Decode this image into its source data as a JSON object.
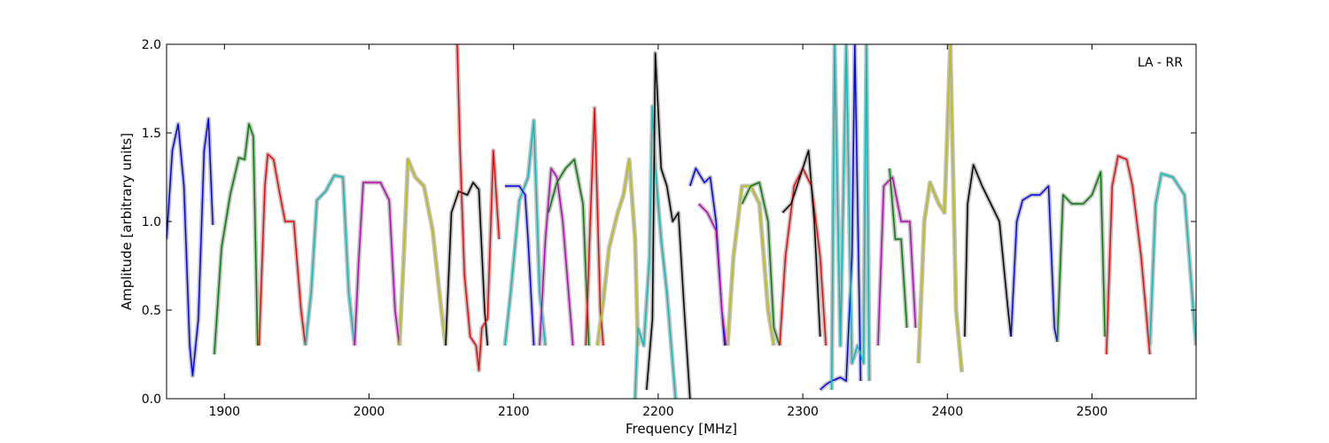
{
  "chart_data": {
    "type": "line",
    "title": "",
    "annotation": "LA - RR",
    "legend": "none",
    "xlabel": "Frequency [MHz]",
    "ylabel": "Amplitude [arbitrary units]",
    "xlim": [
      1860,
      2572
    ],
    "ylim": [
      0.0,
      2.0
    ],
    "xticks": [
      1900,
      2000,
      2100,
      2200,
      2300,
      2400,
      2500
    ],
    "xtick_labels": [
      "1900",
      "2000",
      "2100",
      "2200",
      "2300",
      "2400",
      "2500"
    ],
    "yticks": [
      0.0,
      0.5,
      1.0,
      1.5,
      2.0
    ],
    "ytick_labels": [
      "0.0",
      "0.5",
      "1.0",
      "1.5",
      "2.0"
    ],
    "grid": false,
    "background_color": "#c0c0c0",
    "series": [
      {
        "color": "#0000ff",
        "values": [
          [
            1860,
            0.9
          ],
          [
            1864,
            1.4
          ],
          [
            1868,
            1.55
          ],
          [
            1872,
            1.2
          ],
          [
            1876,
            0.3
          ],
          [
            1878,
            0.13
          ],
          [
            1882,
            0.45
          ],
          [
            1886,
            1.4
          ],
          [
            1889,
            1.58
          ],
          [
            1892,
            0.98
          ]
        ]
      },
      {
        "color": "#008000",
        "values": [
          [
            1893,
            0.25
          ],
          [
            1898,
            0.85
          ],
          [
            1904,
            1.15
          ],
          [
            1910,
            1.36
          ],
          [
            1914,
            1.35
          ],
          [
            1917,
            1.55
          ],
          [
            1920,
            1.48
          ],
          [
            1923,
            0.3
          ]
        ]
      },
      {
        "color": "#ff0000",
        "values": [
          [
            1924,
            0.3
          ],
          [
            1928,
            1.2
          ],
          [
            1930,
            1.38
          ],
          [
            1934,
            1.35
          ],
          [
            1938,
            1.17
          ],
          [
            1942,
            1.0
          ],
          [
            1948,
            1.0
          ],
          [
            1953,
            0.5
          ],
          [
            1956,
            0.3
          ]
        ]
      },
      {
        "color": "#00bfbf",
        "values": [
          [
            1956,
            0.3
          ],
          [
            1960,
            0.6
          ],
          [
            1964,
            1.12
          ],
          [
            1970,
            1.17
          ],
          [
            1976,
            1.26
          ],
          [
            1982,
            1.25
          ],
          [
            1986,
            0.6
          ],
          [
            1990,
            0.3
          ]
        ]
      },
      {
        "color": "#bf00bf",
        "values": [
          [
            1990,
            0.3
          ],
          [
            1993,
            0.8
          ],
          [
            1996,
            1.22
          ],
          [
            2002,
            1.22
          ],
          [
            2008,
            1.22
          ],
          [
            2014,
            1.12
          ],
          [
            2018,
            0.5
          ],
          [
            2021,
            0.3
          ]
        ]
      },
      {
        "color": "#bfbf00",
        "values": [
          [
            2021,
            0.3
          ],
          [
            2024,
            0.8
          ],
          [
            2027,
            1.35
          ],
          [
            2032,
            1.25
          ],
          [
            2038,
            1.2
          ],
          [
            2044,
            0.95
          ],
          [
            2050,
            0.5
          ],
          [
            2053,
            0.3
          ]
        ]
      },
      {
        "color": "#000000",
        "values": [
          [
            2053,
            0.3
          ],
          [
            2057,
            1.05
          ],
          [
            2062,
            1.17
          ],
          [
            2068,
            1.15
          ],
          [
            2072,
            1.22
          ],
          [
            2076,
            1.18
          ],
          [
            2080,
            0.5
          ],
          [
            2082,
            0.3
          ]
        ]
      },
      {
        "color": "#ff0000",
        "values": [
          [
            2061,
            2.0
          ],
          [
            2063,
            1.4
          ],
          [
            2066,
            0.7
          ],
          [
            2070,
            0.35
          ],
          [
            2074,
            0.3
          ],
          [
            2076,
            0.16
          ],
          [
            2078,
            0.4
          ],
          [
            2082,
            0.45
          ],
          [
            2086,
            1.4
          ],
          [
            2090,
            0.9
          ]
        ]
      },
      {
        "color": "#00bfbf",
        "values": [
          [
            2094,
            0.3
          ],
          [
            2098,
            0.6
          ],
          [
            2104,
            1.12
          ],
          [
            2110,
            1.25
          ],
          [
            2114,
            1.57
          ],
          [
            2118,
            0.6
          ],
          [
            2122,
            0.3
          ]
        ]
      },
      {
        "color": "#0000ff",
        "values": [
          [
            2094,
            1.2
          ],
          [
            2098,
            1.2
          ],
          [
            2104,
            1.2
          ],
          [
            2108,
            1.15
          ],
          [
            2110,
            0.9
          ],
          [
            2114,
            0.3
          ]
        ]
      },
      {
        "color": "#bf00bf",
        "values": [
          [
            2118,
            0.3
          ],
          [
            2122,
            0.9
          ],
          [
            2126,
            1.3
          ],
          [
            2130,
            1.25
          ],
          [
            2134,
            1.0
          ],
          [
            2138,
            0.6
          ],
          [
            2141,
            0.3
          ]
        ]
      },
      {
        "color": "#008000",
        "values": [
          [
            2124,
            1.05
          ],
          [
            2130,
            1.22
          ],
          [
            2136,
            1.3
          ],
          [
            2142,
            1.35
          ],
          [
            2148,
            1.1
          ],
          [
            2152,
            0.3
          ]
        ]
      },
      {
        "color": "#ff0000",
        "values": [
          [
            2150,
            0.3
          ],
          [
            2153,
            1.0
          ],
          [
            2156,
            1.64
          ],
          [
            2160,
            0.5
          ],
          [
            2162,
            0.3
          ]
        ]
      },
      {
        "color": "#bfbf00",
        "values": [
          [
            2158,
            0.3
          ],
          [
            2162,
            0.55
          ],
          [
            2166,
            0.85
          ],
          [
            2172,
            1.05
          ],
          [
            2176,
            1.15
          ],
          [
            2180,
            1.35
          ],
          [
            2184,
            0.9
          ],
          [
            2186,
            0.3
          ]
        ]
      },
      {
        "color": "#00bfbf",
        "values": [
          [
            2184,
            0.0
          ],
          [
            2186,
            0.4
          ],
          [
            2190,
            0.3
          ],
          [
            2194,
            0.8
          ],
          [
            2196,
            1.65
          ],
          [
            2198,
            1.3
          ],
          [
            2202,
            0.9
          ],
          [
            2206,
            0.6
          ],
          [
            2210,
            0.2
          ],
          [
            2212,
            0.0
          ]
        ]
      },
      {
        "color": "#000000",
        "values": [
          [
            2192,
            0.05
          ],
          [
            2196,
            0.45
          ],
          [
            2198,
            1.95
          ],
          [
            2202,
            1.3
          ],
          [
            2206,
            1.2
          ],
          [
            2210,
            1.0
          ],
          [
            2214,
            1.05
          ],
          [
            2218,
            0.5
          ],
          [
            2222,
            0.0
          ]
        ]
      },
      {
        "color": "#0000ff",
        "values": [
          [
            2222,
            1.2
          ],
          [
            2226,
            1.3
          ],
          [
            2232,
            1.22
          ],
          [
            2236,
            1.25
          ],
          [
            2240,
            1.0
          ],
          [
            2244,
            0.5
          ],
          [
            2246,
            0.3
          ]
        ]
      },
      {
        "color": "#bf00bf",
        "values": [
          [
            2228,
            1.1
          ],
          [
            2234,
            1.05
          ],
          [
            2240,
            0.95
          ],
          [
            2244,
            0.5
          ],
          [
            2247,
            0.3
          ]
        ]
      },
      {
        "color": "#bfbf00",
        "values": [
          [
            2248,
            0.3
          ],
          [
            2252,
            0.8
          ],
          [
            2258,
            1.2
          ],
          [
            2264,
            1.2
          ],
          [
            2270,
            1.1
          ],
          [
            2276,
            0.5
          ],
          [
            2280,
            0.3
          ]
        ]
      },
      {
        "color": "#008000",
        "values": [
          [
            2258,
            1.1
          ],
          [
            2264,
            1.2
          ],
          [
            2270,
            1.22
          ],
          [
            2276,
            1.0
          ],
          [
            2280,
            0.4
          ],
          [
            2284,
            0.3
          ]
        ]
      },
      {
        "color": "#ff0000",
        "values": [
          [
            2284,
            0.3
          ],
          [
            2288,
            0.8
          ],
          [
            2294,
            1.2
          ],
          [
            2300,
            1.3
          ],
          [
            2306,
            1.2
          ],
          [
            2312,
            0.8
          ],
          [
            2316,
            0.3
          ]
        ]
      },
      {
        "color": "#000000",
        "values": [
          [
            2286,
            1.05
          ],
          [
            2292,
            1.1
          ],
          [
            2298,
            1.25
          ],
          [
            2304,
            1.4
          ],
          [
            2308,
            1.0
          ],
          [
            2312,
            0.35
          ]
        ]
      },
      {
        "color": "#0000ff",
        "values": [
          [
            2312,
            0.05
          ],
          [
            2316,
            0.08
          ],
          [
            2320,
            0.1
          ],
          [
            2326,
            0.12
          ],
          [
            2330,
            0.1
          ],
          [
            2334,
            0.8
          ],
          [
            2336,
            2.0
          ],
          [
            2340,
            0.1
          ]
        ]
      },
      {
        "color": "#00bfbf",
        "values": [
          [
            2320,
            0.05
          ],
          [
            2322,
            2.0
          ],
          [
            2326,
            0.3
          ],
          [
            2330,
            2.0
          ],
          [
            2334,
            0.2
          ],
          [
            2338,
            0.3
          ],
          [
            2342,
            0.2
          ],
          [
            2344,
            2.0
          ],
          [
            2346,
            0.1
          ]
        ]
      },
      {
        "color": "#bf00bf",
        "values": [
          [
            2352,
            0.3
          ],
          [
            2356,
            1.2
          ],
          [
            2362,
            1.25
          ],
          [
            2368,
            1.0
          ],
          [
            2374,
            1.0
          ],
          [
            2378,
            0.4
          ]
        ]
      },
      {
        "color": "#008000",
        "values": [
          [
            2360,
            1.3
          ],
          [
            2364,
            0.9
          ],
          [
            2368,
            0.9
          ],
          [
            2372,
            0.4
          ]
        ]
      },
      {
        "color": "#bfbf00",
        "values": [
          [
            2380,
            0.2
          ],
          [
            2384,
            1.0
          ],
          [
            2388,
            1.22
          ],
          [
            2394,
            1.1
          ],
          [
            2398,
            1.05
          ],
          [
            2402,
            2.0
          ],
          [
            2406,
            0.5
          ],
          [
            2410,
            0.15
          ]
        ]
      },
      {
        "color": "#000000",
        "values": [
          [
            2412,
            0.35
          ],
          [
            2414,
            1.1
          ],
          [
            2418,
            1.32
          ],
          [
            2424,
            1.2
          ],
          [
            2430,
            1.1
          ],
          [
            2436,
            1.0
          ],
          [
            2442,
            0.5
          ],
          [
            2444,
            0.35
          ]
        ]
      },
      {
        "color": "#0000ff",
        "values": [
          [
            2444,
            0.35
          ],
          [
            2448,
            1.0
          ],
          [
            2452,
            1.12
          ],
          [
            2458,
            1.15
          ],
          [
            2464,
            1.15
          ],
          [
            2470,
            1.2
          ],
          [
            2474,
            0.4
          ],
          [
            2476,
            0.32
          ]
        ]
      },
      {
        "color": "#008000",
        "values": [
          [
            2476,
            0.32
          ],
          [
            2480,
            1.15
          ],
          [
            2486,
            1.1
          ],
          [
            2494,
            1.1
          ],
          [
            2500,
            1.15
          ],
          [
            2506,
            1.28
          ],
          [
            2509,
            0.35
          ]
        ]
      },
      {
        "color": "#ff0000",
        "values": [
          [
            2510,
            0.25
          ],
          [
            2514,
            1.2
          ],
          [
            2518,
            1.37
          ],
          [
            2524,
            1.35
          ],
          [
            2528,
            1.2
          ],
          [
            2534,
            0.8
          ],
          [
            2540,
            0.25
          ]
        ]
      },
      {
        "color": "#00bfbf",
        "values": [
          [
            2540,
            0.3
          ],
          [
            2544,
            1.1
          ],
          [
            2548,
            1.27
          ],
          [
            2556,
            1.25
          ],
          [
            2564,
            1.15
          ],
          [
            2572,
            0.3
          ]
        ]
      }
    ]
  }
}
